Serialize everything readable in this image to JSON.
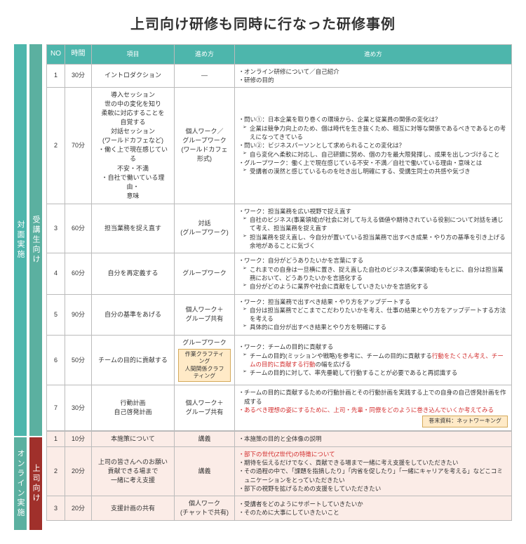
{
  "title": "上司向け研修も同時に行なった研修事例",
  "headers": {
    "no": "NO",
    "time": "時間",
    "item": "項目",
    "method": "進め方",
    "detail": "進め方"
  },
  "vbars": {
    "taimen": "対面実施",
    "online": "オンライン実施",
    "jukosei": "受講生向け",
    "joshi": "上司向け"
  },
  "section1": [
    {
      "no": "1",
      "time": "30分",
      "item": "イントロダクション",
      "method": "—",
      "detail": [
        "オンライン研修について／自己紹介",
        "研修の目的"
      ]
    },
    {
      "no": "2",
      "time": "70分",
      "item": "導入セッション\n世の中の変化を知り\n柔軟に対応することを\n自覚する\n対話セッション\n(ワールドカフェなど)\n・働く上で現在感じている\n不安・不満\n・自社で働いている理由・\n意味",
      "method": "個人ワーク／\nグループワーク\n(ワールドカフェ\n形式)",
      "detail": [
        "問い①：日本企業を取り巻くの環境から、企業と従業員の関係の変化は？",
        {
          "sub": "企業は競争力向上のため、個は時代を生き抜くため、相互に対等な関係であるべきであるとの考えになってきている"
        },
        "問い②：ビジネスパーソンとして求められることの変化は？",
        {
          "sub": "自ら変化へ柔軟に対応し、自己研鑽に努め、個の力を最大限発揮し、成果を出しつづけること"
        },
        "グループワーク：働く上で現在感じている不安・不満／自社で働いている理由・意味とは",
        {
          "sub": "受講者の漠然と感じているものを吐き出し明確にする、受講生同士の共感や気づき"
        }
      ]
    },
    {
      "no": "3",
      "time": "60分",
      "item": "担当業務を捉え直す",
      "method": "対話\n(グループワーク)",
      "detail": [
        "ワーク：担当業務を広い視野で捉え直す",
        {
          "sub": "自社のビジネス(事業領域)が社会に対して与える価値や期待されている役割について対話を通じて考え、担当業務を捉え直す"
        },
        {
          "sub": "担当業務を捉え直し、今自分が置いている担当業務で出すべき成果・やり方の基準を引き上げる余地があることに気づく"
        }
      ]
    },
    {
      "no": "4",
      "time": "60分",
      "item": "自分を再定義する",
      "method": "グループワーク",
      "detail": [
        "ワーク：自分がどうありたいかを言葉にする",
        {
          "sub": "これまでの自身は一旦横に置き、捉え直した自社のビジネス(事業領域)をもとに、自分は担当業務において、どうありたいかを言語化する"
        },
        {
          "sub": "自分がどのように業界や社会に貢献をしていきたいかを言語化する"
        }
      ]
    },
    {
      "no": "5",
      "time": "90分",
      "item": "自分の基準をあげる",
      "method": "個人ワーク＋\nグループ共有",
      "detail": [
        "ワーク：担当業務で出すべき結果・やり方をアップデートする",
        {
          "sub": "自分は担当業務でどこまでこだわりたいかを考え、仕事の結果とやり方をアップデートする方法を考える"
        },
        {
          "sub": "具体的に自分が出すべき結果とやり方を明確にする"
        }
      ]
    },
    {
      "no": "6",
      "time": "50分",
      "item": "チームの目的に貢献する",
      "method": "グループワーク",
      "methodNote": "作業クラフティング\n人間関係クラフティング",
      "detail": [
        "ワーク：チームの目的に貢献する",
        {
          "sub": "チームの目的(ミッションや戦略)を参考に、チームの目的に貢献する<span class='red'>行動をたくさん考え、チームの目的に貢献する行動</span>の幅を広げる"
        },
        {
          "sub": "チームの目的に対して、率先垂範して行動することが必要であると再認識する"
        }
      ]
    },
    {
      "no": "7",
      "time": "30分",
      "item": "行動計画\n自己啓発計画",
      "method": "個人ワーク＋\nグループ共有",
      "detail": [
        "チームの目的に貢献するための行動計画とその行動計画を実践する上での自身の自己啓発計画を作成する",
        {
          "red": "あるべき理想の姿にするために、上司・先輩・同僚をどのように巻き込んでいくか考えてみる"
        }
      ],
      "afterNote": "巻末資料：ネットワーキング"
    }
  ],
  "section2": [
    {
      "no": "1",
      "time": "10分",
      "item": "本施策について",
      "method": "講義",
      "detail": [
        "本施策の目的と全体像の説明"
      ]
    },
    {
      "no": "2",
      "time": "20分",
      "item": "上司の皆さんへのお願い\n貢献できる場まで\n一緒に考え支援",
      "method": "講義",
      "detail": [
        {
          "red": "部下の世代(Z世代)の特徴について"
        },
        "期待を伝えるだけでなく、貢献できる場まで一緒に考え支援をしていただきたい",
        "その過程の中で、「課題を指摘したり」「内省を促したり」「一緒にキャリアを考える」などこコミュニケーションをとっていただきたい",
        "部下の視野を拡げるための支援をしていただきたい"
      ]
    },
    {
      "no": "3",
      "time": "20分",
      "item": "支援計画の共有",
      "method": "個人ワーク\n(チャットで共有)",
      "detail": [
        "受講者をどのようにサポートしていきたいか",
        "そのために大事にしていきたいこと"
      ]
    }
  ]
}
